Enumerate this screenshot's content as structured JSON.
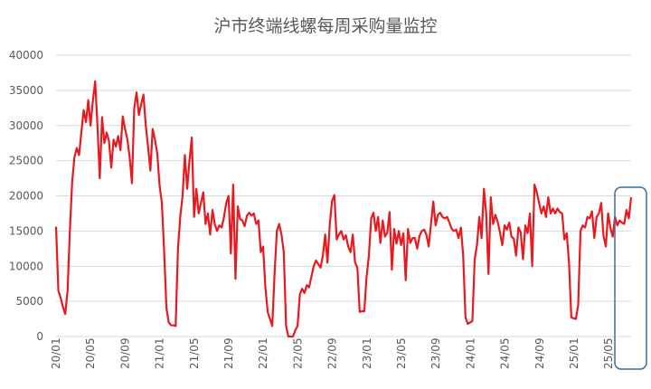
{
  "chart_data": {
    "type": "line",
    "title": "沪市终端线螺每周采购量监控",
    "xlabel": "",
    "ylabel": "",
    "ylim": [
      0,
      40000
    ],
    "yticks": [
      0,
      5000,
      10000,
      15000,
      20000,
      25000,
      30000,
      35000,
      40000
    ],
    "xtick_labels": [
      "20/01",
      "20/05",
      "20/09",
      "21/01",
      "21/05",
      "21/09",
      "22/01",
      "22/05",
      "22/09",
      "23/01",
      "23/05",
      "23/09",
      "24/01",
      "24/05",
      "24/09",
      "25/01",
      "25/05"
    ],
    "grid": true,
    "legend": "none",
    "line_color": "#e8191f",
    "highlight_box_color": "#3a6f9a",
    "series": [
      {
        "values": [
          15600,
          6500,
          5500,
          4200,
          3200,
          6500,
          15000,
          22000,
          25500,
          26800,
          25800,
          29000,
          32200,
          30500,
          33600,
          30000,
          33500,
          36300,
          30000,
          22500,
          31200,
          27500,
          29000,
          27800,
          24000,
          28000,
          27000,
          28500,
          26500,
          31300,
          29500,
          28000,
          25500,
          21800,
          32500,
          34700,
          31500,
          33000,
          34400,
          30000,
          27000,
          23600,
          29500,
          28000,
          26000,
          21500,
          19000,
          12000,
          4000,
          2000,
          1600,
          1600,
          1500,
          12500,
          17000,
          20000,
          25800,
          21000,
          25000,
          28300,
          17000,
          21000,
          17500,
          19000,
          20500,
          16000,
          17500,
          14500,
          18000,
          16000,
          15000,
          15800,
          15500,
          17000,
          19000,
          20000,
          11800,
          21600,
          8200,
          18500,
          16700,
          16500,
          15700,
          17200,
          17600,
          17200,
          17500,
          16000,
          16500,
          12000,
          12800,
          7000,
          3500,
          2500,
          1500,
          9000,
          15000,
          16000,
          14500,
          12000,
          1500,
          0,
          0,
          0,
          900,
          1500,
          6000,
          6800,
          6200,
          7300,
          7000,
          8500,
          10000,
          10800,
          10300,
          9800,
          11500,
          14500,
          10500,
          16000,
          19300,
          20100,
          13800,
          14500,
          15000,
          13800,
          14400,
          12800,
          12000,
          14500,
          10500,
          9800,
          3500,
          3600,
          3600,
          8500,
          11500,
          16800,
          17600,
          15000,
          17000,
          13300,
          16500,
          14200,
          14800,
          17700,
          9500,
          15300,
          13200,
          15000,
          13000,
          14700,
          8000,
          15300,
          13300,
          14000,
          14000,
          12500,
          14300,
          15000,
          15200,
          14500,
          12800,
          16000,
          19200,
          15800,
          17300,
          17600,
          17000,
          16800,
          17000,
          16200,
          15300,
          15000,
          15200,
          14000,
          15500,
          11500,
          2700,
          1800,
          2000,
          2200,
          11000,
          13000,
          17000,
          14000,
          21000,
          17500,
          8900,
          19800,
          16000,
          17300,
          16300,
          14800,
          13000,
          15800,
          15200,
          16200,
          14200,
          13900,
          11500,
          15500,
          14800,
          11000,
          15800,
          14700,
          17500,
          10000,
          21600,
          20500,
          19000,
          17500,
          18500,
          17000,
          19800,
          17500,
          18200,
          17500,
          18200,
          17700,
          17500,
          13800,
          14700,
          10500,
          2700,
          2600,
          2500,
          4500,
          15000,
          15800,
          15500,
          17000,
          16800,
          17800,
          14000,
          17000,
          17500,
          19000,
          14300,
          12800,
          17500,
          15500,
          14200,
          17000,
          15800,
          16500,
          16200,
          16000,
          18000,
          16800,
          19800
        ]
      }
    ]
  }
}
